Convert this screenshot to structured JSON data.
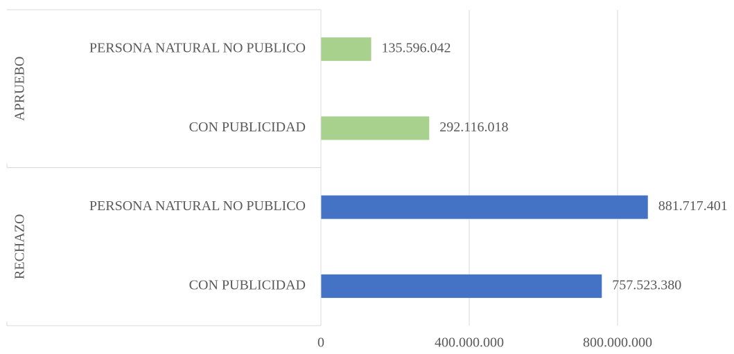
{
  "chart_data": {
    "type": "bar",
    "orientation": "horizontal",
    "groups": [
      {
        "name": "APRUEBO",
        "color": "#a9d18e",
        "categories": [
          "PERSONA NATURAL NO PUBLICO",
          "CON PUBLICIDAD"
        ],
        "values": [
          135596042,
          292116018
        ],
        "value_labels": [
          "135.596.042",
          "292.116.018"
        ]
      },
      {
        "name": "RECHAZO",
        "color": "#4472c4",
        "categories": [
          "PERSONA NATURAL NO PUBLICO",
          "CON PUBLICIDAD"
        ],
        "values": [
          881717401,
          757523380
        ],
        "value_labels": [
          "881.717.401",
          "757.523.380"
        ]
      }
    ],
    "xlim": [
      0,
      1000000000
    ],
    "xticks": [
      0,
      {
        "value": 400000000,
        "label": "400.000.000"
      },
      {
        "value": 800000000,
        "label": "800.000.000"
      }
    ],
    "grid": true
  }
}
